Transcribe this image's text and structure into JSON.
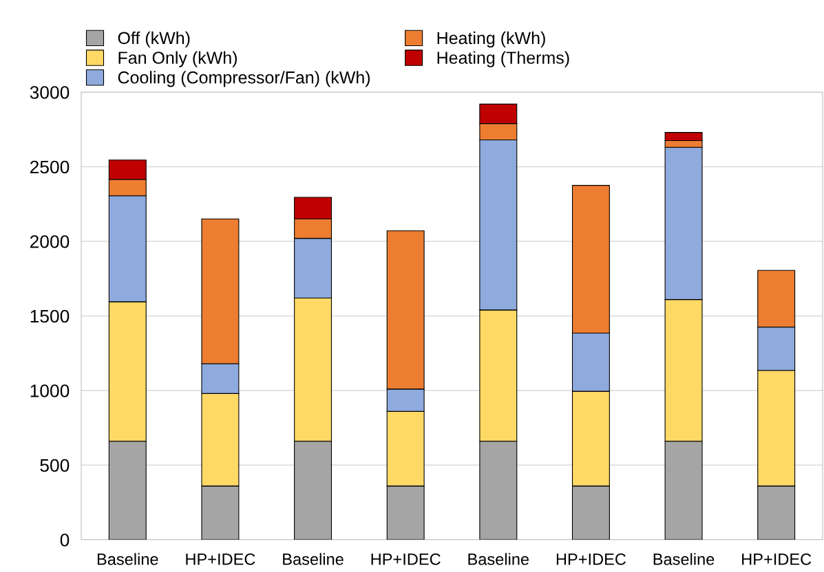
{
  "chart_data": {
    "type": "bar",
    "stacked": true,
    "categories": [
      "Baseline",
      "HP+IDEC",
      "Baseline",
      "HP+IDEC",
      "Baseline",
      "HP+IDEC",
      "Baseline",
      "HP+IDEC"
    ],
    "series": [
      {
        "name": "Off (kWh)",
        "color": "#a5a5a5",
        "values": [
          660,
          360,
          660,
          360,
          660,
          360,
          660,
          360
        ]
      },
      {
        "name": "Fan Only (kWh)",
        "color": "#ffd966",
        "values": [
          935,
          620,
          960,
          500,
          880,
          635,
          950,
          775
        ]
      },
      {
        "name": "Cooling (Compressor/Fan) (kWh)",
        "color": "#8faadc",
        "values": [
          710,
          200,
          400,
          150,
          1140,
          390,
          1020,
          290
        ]
      },
      {
        "name": "Heating (kWh)",
        "color": "#ed7d31",
        "values": [
          110,
          970,
          130,
          1060,
          110,
          990,
          45,
          380
        ]
      },
      {
        "name": "Heating (Therms)",
        "color": "#c00000",
        "values": [
          130,
          null,
          145,
          null,
          130,
          null,
          55,
          null
        ]
      }
    ],
    "ylim": [
      0,
      3000
    ],
    "yticks": [
      0,
      500,
      1000,
      1500,
      2000,
      2500,
      3000
    ],
    "grid": "y",
    "legend": "top left"
  }
}
